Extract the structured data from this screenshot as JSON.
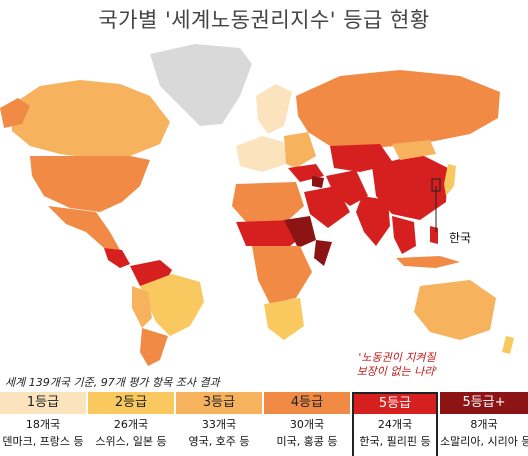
{
  "title": "국가별 '세계노동권리지수' 등급 현황",
  "label_korea": "한국",
  "note": "세계 139개국 기준, 97개 평가 항목 조사 결과",
  "callout": [
    "'노동권이 지켜질",
    "보장이 없는 나라'"
  ],
  "colors": {
    "grade1": "#fbe3bd",
    "grade2": "#f9c85e",
    "grade3": "#f6b25c",
    "grade4": "#f08a44",
    "grade5": "#d62020",
    "grade5plus": "#8d1414",
    "no_data": "#d9d9d9"
  },
  "legend": [
    {
      "grade": "1등급",
      "count": "18개국",
      "examples": "덴마크, 프랑스 등"
    },
    {
      "grade": "2등급",
      "count": "26개국",
      "examples": "스위스, 일본 등"
    },
    {
      "grade": "3등급",
      "count": "33개국",
      "examples": "영국, 호주 등"
    },
    {
      "grade": "4등급",
      "count": "30개국",
      "examples": "미국, 홍콩 등"
    },
    {
      "grade": "5등급",
      "count": "24개국",
      "examples": "한국, 필리핀 등"
    },
    {
      "grade": "5등급+",
      "count": "8개국",
      "examples": "소말리아, 시리아 등"
    }
  ]
}
